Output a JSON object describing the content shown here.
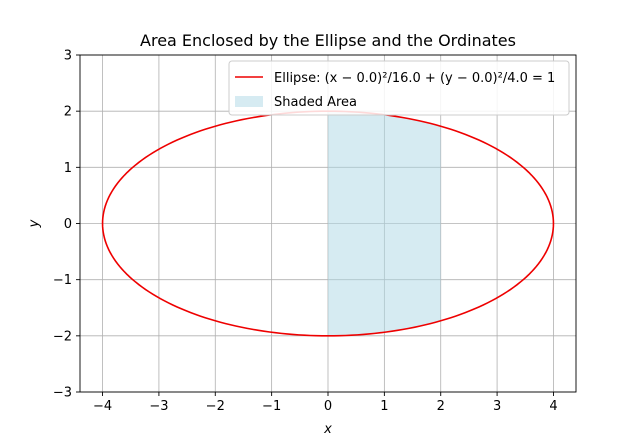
{
  "chart_data": {
    "type": "line",
    "title": "Area Enclosed by the Ellipse and the Ordinates",
    "xlabel": "x",
    "ylabel": "y",
    "xlim": [
      -4.4,
      4.4
    ],
    "ylim": [
      -3,
      3
    ],
    "xticks": [
      -4,
      -3,
      -2,
      -1,
      0,
      1,
      2,
      3,
      4
    ],
    "yticks": [
      -3,
      -2,
      -1,
      0,
      1,
      2,
      3
    ],
    "xtick_labels": [
      "−4",
      "−3",
      "−2",
      "−1",
      "0",
      "1",
      "2",
      "3",
      "4"
    ],
    "ytick_labels": [
      "−3",
      "−2",
      "−1",
      "0",
      "1",
      "2",
      "3"
    ],
    "grid": true,
    "legend_position": "top-right",
    "ellipse": {
      "name": "Ellipse: (x − 0.0)²/16.0 + (y − 0.0)²/4.0 = 1",
      "center": [
        0.0,
        0.0
      ],
      "a": 4.0,
      "b": 2.0,
      "color": "#ee0000"
    },
    "shaded_area": {
      "name": "Shaded Area",
      "x_range": [
        0,
        2
      ],
      "color": "#add8e6"
    }
  }
}
